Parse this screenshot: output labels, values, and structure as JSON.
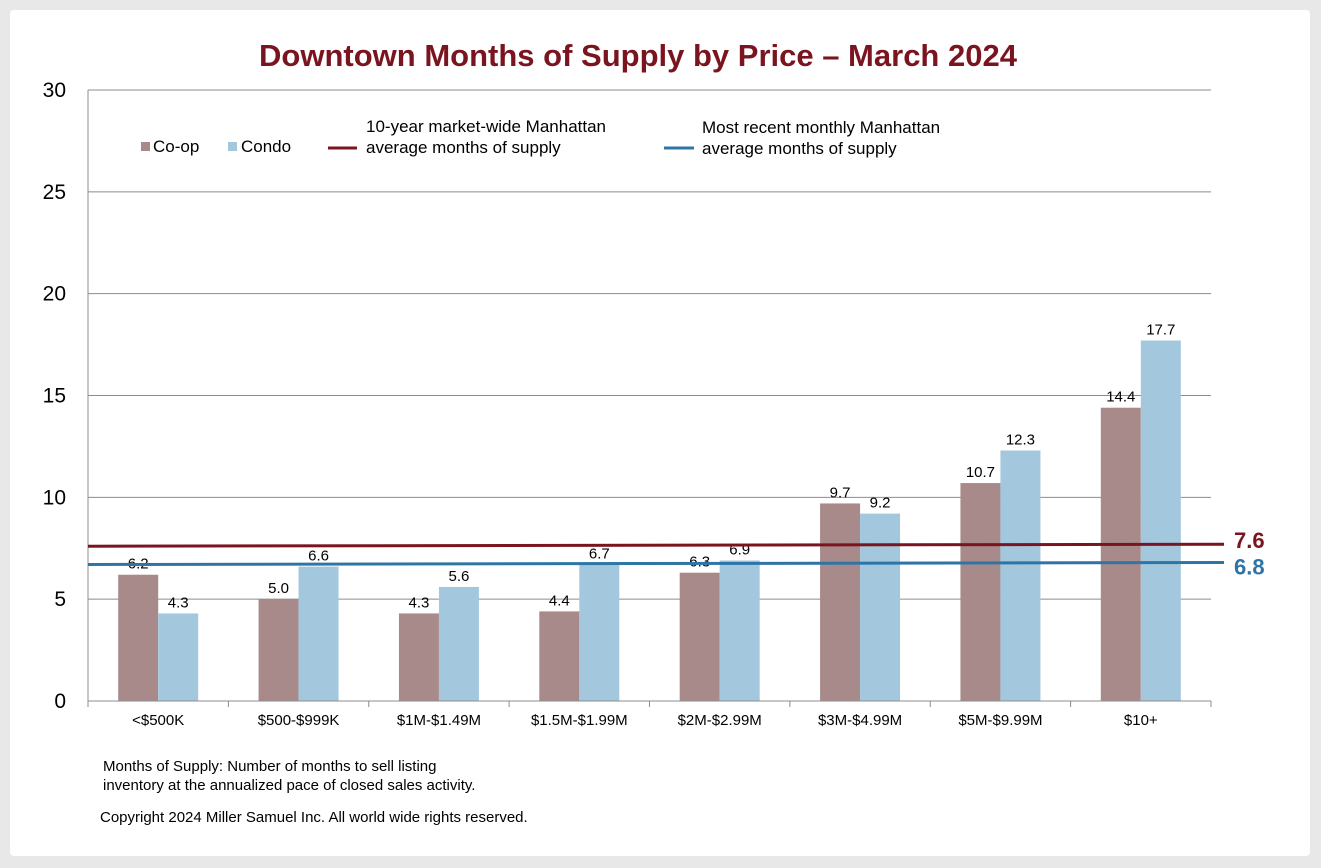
{
  "chart_data": {
    "type": "bar",
    "title": "Downtown Months of Supply by Price – March 2024",
    "categories": [
      "<$500K",
      "$500-$999K",
      "$1M-$1.49M",
      "$1.5M-$1.99M",
      "$2M-$2.99M",
      "$3M-$4.99M",
      "$5M-$9.99M",
      "$10+"
    ],
    "series": [
      {
        "name": "Co-op",
        "color": "#a88a8a",
        "values": [
          6.2,
          5.0,
          4.3,
          4.4,
          6.3,
          9.7,
          10.7,
          14.4
        ],
        "labels": [
          "6.2",
          "5.0",
          "4.3",
          "4.4",
          "6.3",
          "9.7",
          "10.7",
          "14.4"
        ]
      },
      {
        "name": "Condo",
        "color": "#a3c8de",
        "values": [
          4.3,
          6.6,
          5.6,
          6.7,
          6.9,
          9.2,
          12.3,
          17.7
        ],
        "labels": [
          "4.3",
          "6.6",
          "5.6",
          "6.7",
          "6.9",
          "9.2",
          "12.3",
          "17.7"
        ]
      }
    ],
    "reference_lines": [
      {
        "name_line1": "10-year market-wide Manhattan",
        "name_line2": "average months of supply",
        "value": 7.6,
        "label": "7.6",
        "color": "#7a1520"
      },
      {
        "name_line1": "Most recent monthly Manhattan",
        "name_line2": "average months of supply",
        "value": 6.8,
        "label": "6.8",
        "color": "#2e75a6"
      }
    ],
    "ylim": [
      0,
      30
    ],
    "yticks": [
      "0",
      "5",
      "10",
      "15",
      "20",
      "25",
      "30"
    ],
    "ytick_values": [
      0,
      5,
      10,
      15,
      20,
      25,
      30
    ],
    "grid": true,
    "legend_position": "top-left",
    "xlabel": "",
    "ylabel": ""
  },
  "footnote": {
    "line1": "Months of Supply: Number of months to sell listing",
    "line2": "inventory at the annualized pace of closed sales activity."
  },
  "copyright": "Copyright 2024 Miller Samuel Inc.  All world wide rights reserved."
}
